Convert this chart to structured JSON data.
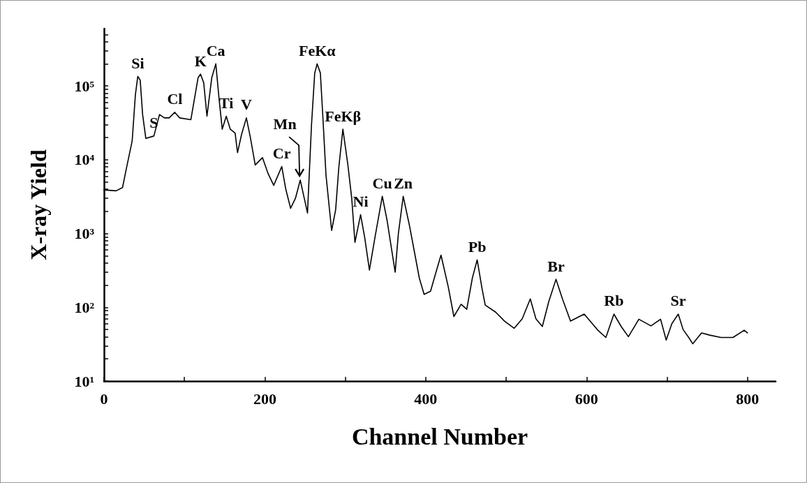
{
  "chart_data": {
    "type": "line",
    "xlabel": "Channel Number",
    "ylabel": "X-ray Yield",
    "log": "y",
    "grid": false,
    "marker": "none",
    "line_style": "solid",
    "xlim": [
      0,
      835
    ],
    "xticks": [
      0,
      {
        "value": 100,
        "label": null
      },
      200,
      {
        "value": 300,
        "label": null
      },
      400,
      {
        "value": 500,
        "label": null
      },
      600,
      {
        "value": 700,
        "label": null
      },
      800
    ],
    "ylim": [
      10,
      600000
    ],
    "yticks": [
      {
        "value": 10,
        "label": "10¹"
      },
      {
        "value": 20,
        "label": null
      },
      {
        "value": 30,
        "label": null
      },
      {
        "value": 40,
        "label": null
      },
      {
        "value": 50,
        "label": null
      },
      {
        "value": 60,
        "label": null
      },
      {
        "value": 70,
        "label": null
      },
      {
        "value": 80,
        "label": null
      },
      {
        "value": 90,
        "label": null
      },
      {
        "value": 100,
        "label": "10²"
      },
      {
        "value": 200,
        "label": null
      },
      {
        "value": 300,
        "label": null
      },
      {
        "value": 400,
        "label": null
      },
      {
        "value": 500,
        "label": null
      },
      {
        "value": 600,
        "label": null
      },
      {
        "value": 700,
        "label": null
      },
      {
        "value": 800,
        "label": null
      },
      {
        "value": 900,
        "label": null
      },
      {
        "value": 1000,
        "label": "10³"
      },
      {
        "value": 2000,
        "label": null
      },
      {
        "value": 3000,
        "label": null
      },
      {
        "value": 4000,
        "label": null
      },
      {
        "value": 5000,
        "label": null
      },
      {
        "value": 6000,
        "label": null
      },
      {
        "value": 7000,
        "label": null
      },
      {
        "value": 8000,
        "label": null
      },
      {
        "value": 9000,
        "label": null
      },
      {
        "value": 10000,
        "label": "10⁴"
      },
      {
        "value": 20000,
        "label": null
      },
      {
        "value": 30000,
        "label": null
      },
      {
        "value": 40000,
        "label": null
      },
      {
        "value": 50000,
        "label": null
      },
      {
        "value": 60000,
        "label": null
      },
      {
        "value": 70000,
        "label": null
      },
      {
        "value": 80000,
        "label": null
      },
      {
        "value": 90000,
        "label": null
      },
      {
        "value": 100000,
        "label": "10⁵"
      },
      {
        "value": 200000,
        "label": null
      },
      {
        "value": 300000,
        "label": null
      },
      {
        "value": 400000,
        "label": null
      },
      {
        "value": 500000,
        "label": null
      }
    ],
    "annotations": [
      {
        "text": "Si",
        "x": 42,
        "y": 135000
      },
      {
        "text": "S",
        "x": 62,
        "y": 21000
      },
      {
        "text": "Cl",
        "x": 88,
        "y": 44000
      },
      {
        "text": "K",
        "x": 120,
        "y": 145000
      },
      {
        "text": "Ca",
        "x": 139,
        "y": 200000
      },
      {
        "text": "Ti",
        "x": 152,
        "y": 39000
      },
      {
        "text": "V",
        "x": 177,
        "y": 37000
      },
      {
        "text": "Mn",
        "x": 244,
        "y": 5300
      },
      {
        "text": "Cr",
        "x": 221,
        "y": 8100
      },
      {
        "text": "FeKα",
        "x": 265,
        "y": 200000
      },
      {
        "text": "FeKβ",
        "x": 297,
        "y": 26000
      },
      {
        "text": "Ni",
        "x": 319,
        "y": 1800
      },
      {
        "text": "Cu",
        "x": 346,
        "y": 3200
      },
      {
        "text": "Zn",
        "x": 372,
        "y": 3200
      },
      {
        "text": "Pb",
        "x": 464,
        "y": 440
      },
      {
        "text": "Br",
        "x": 562,
        "y": 240
      },
      {
        "text": "Rb",
        "x": 634,
        "y": 81
      },
      {
        "text": "Sr",
        "x": 714,
        "y": 81
      }
    ],
    "series": [
      {
        "color": "#000000",
        "x": [
          0,
          15,
          23,
          28,
          35,
          39,
          42,
          45,
          48,
          52,
          62,
          69,
          75,
          81,
          88,
          94,
          108,
          117,
          120,
          124,
          128,
          134,
          139,
          143,
          147,
          152,
          157,
          163,
          166,
          171,
          177,
          182,
          188,
          197,
          204,
          211,
          221,
          226,
          232,
          238,
          244,
          249,
          253,
          258,
          262,
          265,
          269,
          272,
          276,
          283,
          288,
          292,
          297,
          303,
          308,
          312,
          319,
          324,
          330,
          337,
          346,
          352,
          362,
          366,
          372,
          380,
          386,
          392,
          398,
          406,
          412,
          419,
          428,
          435,
          444,
          451,
          458,
          464,
          470,
          474,
          487,
          498,
          510,
          520,
          530,
          537,
          545,
          553,
          562,
          570,
          580,
          597,
          614,
          624,
          634,
          643,
          652,
          665,
          680,
          692,
          699,
          706,
          714,
          720,
          727,
          732,
          743,
          753,
          767,
          782,
          796,
          800
        ],
        "values": [
          3900,
          3800,
          4200,
          7800,
          18000,
          76000,
          135000,
          120000,
          41000,
          19500,
          21000,
          41000,
          37000,
          37000,
          44000,
          37000,
          35000,
          130000,
          145000,
          110000,
          39000,
          130000,
          200000,
          68000,
          26000,
          39000,
          26000,
          23000,
          12500,
          22000,
          37000,
          20000,
          8500,
          10700,
          6500,
          4500,
          8100,
          4000,
          2200,
          3000,
          5300,
          3000,
          1900,
          30000,
          150000,
          200000,
          150000,
          40000,
          6200,
          1100,
          2100,
          8000,
          26000,
          8900,
          3000,
          760,
          1800,
          900,
          320,
          900,
          3200,
          1500,
          300,
          1000,
          3200,
          1250,
          560,
          250,
          150,
          165,
          280,
          510,
          190,
          75,
          110,
          94,
          250,
          440,
          180,
          107,
          86,
          65,
          52,
          70,
          130,
          70,
          55,
          120,
          240,
          130,
          65,
          81,
          49,
          39,
          81,
          55,
          40,
          69,
          56,
          69,
          36,
          60,
          81,
          50,
          39,
          32,
          45,
          42,
          39,
          39,
          49,
          45
        ]
      }
    ]
  }
}
